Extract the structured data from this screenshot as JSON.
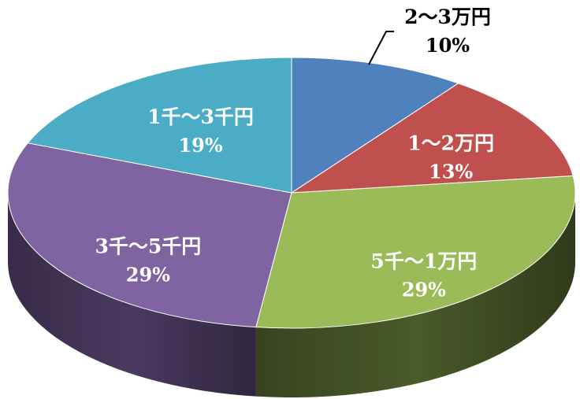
{
  "chart_data": {
    "type": "pie",
    "style": "3d",
    "title": "",
    "slices": [
      {
        "label": "2～3万円",
        "value": 10,
        "display": "10%",
        "color": "#4f81bd",
        "side_color": "#2a4a75",
        "label_color": "#000000",
        "label_outside": true
      },
      {
        "label": "1～2万円",
        "value": 13,
        "display": "13%",
        "color": "#c0504d",
        "side_color": "#7a2e2c",
        "label_color": "#ffffff",
        "label_outside": false
      },
      {
        "label": "5千～1万円",
        "value": 29,
        "display": "29%",
        "color": "#9bbb59",
        "side_color": "#4a5a2a",
        "label_color": "#ffffff",
        "label_outside": false
      },
      {
        "label": "3千～5千円",
        "value": 29,
        "display": "29%",
        "color": "#8064a2",
        "side_color": "#4a3a60",
        "label_color": "#ffffff",
        "label_outside": false
      },
      {
        "label": "1千～3千円",
        "value": 19,
        "display": "19%",
        "color": "#4bacc6",
        "side_color": "#2a6a7a",
        "label_color": "#ffffff",
        "label_outside": false
      }
    ]
  }
}
